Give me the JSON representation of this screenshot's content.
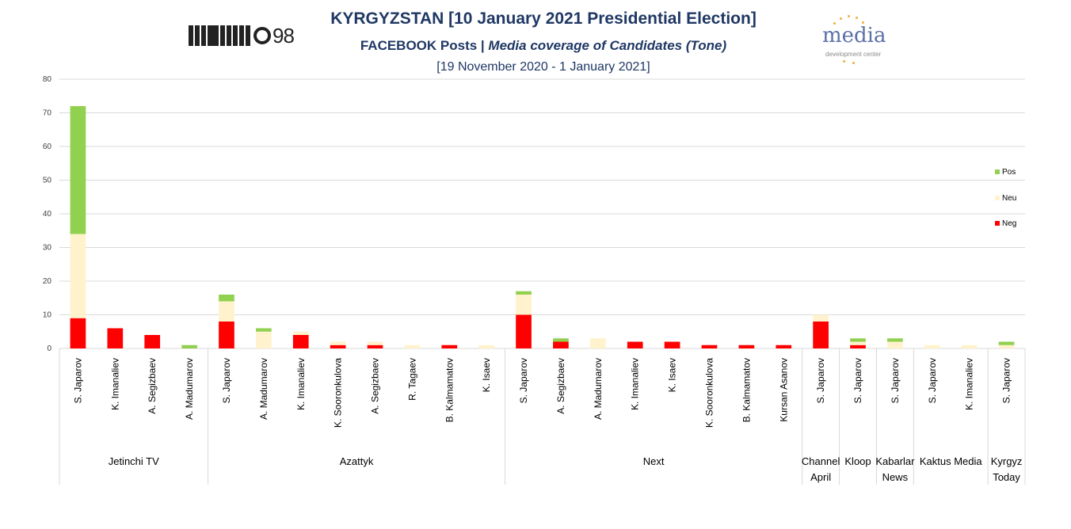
{
  "header": {
    "title": "KYRGYZSTAN [10 January 2021 Presidential Election]",
    "subtitle_prefix": "FACEBOOK Posts |",
    "subtitle_italic": "Media coverage of Candidates (Tone)",
    "date_range": "[19 November 2020 - 1 January 2021]",
    "logo_left_text": "98",
    "logo_right_word": "media",
    "logo_right_tag": "development center"
  },
  "colors": {
    "pos": "#92d050",
    "neu": "#fff2cc",
    "neg": "#ff0000",
    "grid": "#d9d9d9",
    "axis_text": "#404040"
  },
  "chart_data": {
    "type": "bar",
    "stacked": true,
    "ylim": [
      0,
      80
    ],
    "yticks": [
      0,
      10,
      20,
      30,
      40,
      50,
      60,
      70,
      80
    ],
    "grid": true,
    "legend": {
      "placement": "right",
      "entries": [
        "Pos",
        "Neu",
        "Neg"
      ]
    },
    "series_order": [
      "Neg",
      "Neu",
      "Pos"
    ],
    "groups": [
      {
        "name": "Jetinchi TV",
        "bars": [
          {
            "label": "S. Japarov",
            "Neg": 9,
            "Neu": 25,
            "Pos": 38
          },
          {
            "label": "K. Imanaliev",
            "Neg": 6,
            "Neu": 0,
            "Pos": 0
          },
          {
            "label": "A. Segizbaev",
            "Neg": 4,
            "Neu": 0,
            "Pos": 0
          },
          {
            "label": "A. Madumarov",
            "Neg": 0,
            "Neu": 0,
            "Pos": 1
          }
        ]
      },
      {
        "name": "Azattyk",
        "bars": [
          {
            "label": "S. Japarov",
            "Neg": 8,
            "Neu": 6,
            "Pos": 2
          },
          {
            "label": "A. Madumarov",
            "Neg": 0,
            "Neu": 5,
            "Pos": 1
          },
          {
            "label": "K. Imanaliev",
            "Neg": 4,
            "Neu": 1,
            "Pos": 0
          },
          {
            "label": "K. Sooronkulova",
            "Neg": 1,
            "Neu": 1,
            "Pos": 0
          },
          {
            "label": "A. Segizbaev",
            "Neg": 1,
            "Neu": 1,
            "Pos": 0
          },
          {
            "label": "R. Tagaev",
            "Neg": 0,
            "Neu": 1,
            "Pos": 0
          },
          {
            "label": "B. Kalmamatov",
            "Neg": 1,
            "Neu": 0,
            "Pos": 0
          },
          {
            "label": "K. Isaev",
            "Neg": 0,
            "Neu": 1,
            "Pos": 0
          }
        ]
      },
      {
        "name": "Next",
        "bars": [
          {
            "label": "S. Japarov",
            "Neg": 10,
            "Neu": 6,
            "Pos": 1
          },
          {
            "label": "A. Segizbaev",
            "Neg": 2,
            "Neu": 0,
            "Pos": 1
          },
          {
            "label": "A. Madumarov",
            "Neg": 0,
            "Neu": 3,
            "Pos": 0
          },
          {
            "label": "K. Imanaliev",
            "Neg": 2,
            "Neu": 0,
            "Pos": 0
          },
          {
            "label": "K. Isaev",
            "Neg": 2,
            "Neu": 0,
            "Pos": 0
          },
          {
            "label": "K. Sooronkulova",
            "Neg": 1,
            "Neu": 0,
            "Pos": 0
          },
          {
            "label": "B. Kalmamatov",
            "Neg": 1,
            "Neu": 0,
            "Pos": 0
          },
          {
            "label": "Kursan Asanov",
            "Neg": 1,
            "Neu": 0,
            "Pos": 0
          }
        ]
      },
      {
        "name": "Channel April",
        "name_lines": [
          "Channel",
          "April"
        ],
        "bars": [
          {
            "label": "S. Japarov",
            "Neg": 8,
            "Neu": 2,
            "Pos": 0
          }
        ]
      },
      {
        "name": "Kloop",
        "bars": [
          {
            "label": "S. Japarov",
            "Neg": 1,
            "Neu": 1,
            "Pos": 1
          }
        ]
      },
      {
        "name": "Kabarlar News",
        "name_lines": [
          "Kabarlar",
          "News"
        ],
        "bars": [
          {
            "label": "S. Japarov",
            "Neg": 0,
            "Neu": 2,
            "Pos": 1
          }
        ]
      },
      {
        "name": "Kaktus Media",
        "bars": [
          {
            "label": "S. Japarov",
            "Neg": 0,
            "Neu": 1,
            "Pos": 0
          },
          {
            "label": "K. Imanaliev",
            "Neg": 0,
            "Neu": 1,
            "Pos": 0
          }
        ]
      },
      {
        "name": "Kyrgyz Today",
        "name_lines": [
          "Kyrgyz",
          "Today"
        ],
        "bars": [
          {
            "label": "S. Japarov",
            "Neg": 0,
            "Neu": 1,
            "Pos": 1
          }
        ]
      }
    ]
  }
}
